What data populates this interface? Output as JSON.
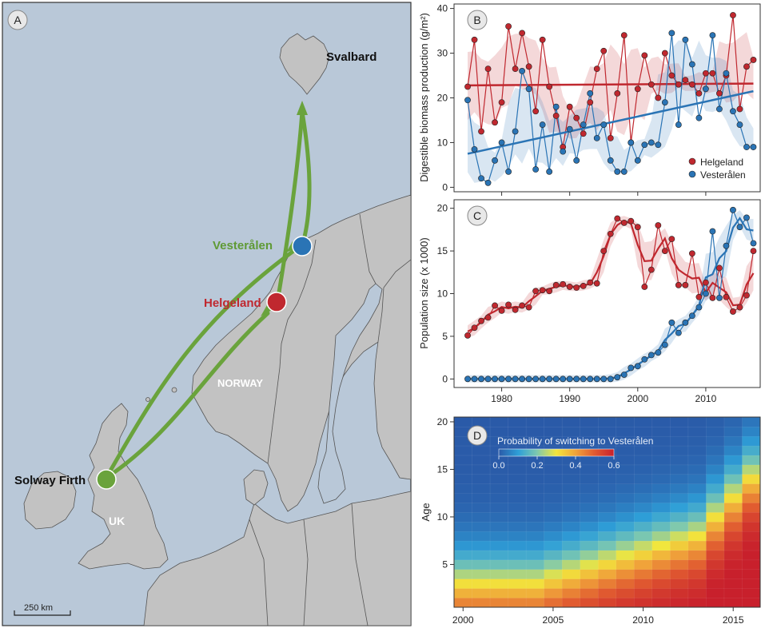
{
  "panels": {
    "a": {
      "letter": "A"
    },
    "b": {
      "letter": "B"
    },
    "c": {
      "letter": "C"
    },
    "d": {
      "letter": "D"
    }
  },
  "map": {
    "labels": {
      "svalbard": "Svalbard",
      "vesteralen": "Vesterålen",
      "helgeland": "Helgeland",
      "norway": "NORWAY",
      "solway": "Solway Firth",
      "uk": "UK"
    },
    "scale_label": "250 km",
    "colors": {
      "sea": "#b9c8d8",
      "land": "#c2c2c2",
      "border": "#555555",
      "route": "#6aa33c",
      "vesteralen": "#2a74b5",
      "helgeland": "#c0282f",
      "solway": "#6aa33c"
    }
  },
  "chart_data": [
    {
      "id": "B",
      "type": "line",
      "title": "",
      "ylabel": "Digestible biomass production (g/m²)",
      "xlabel": "",
      "xlim": [
        1973,
        2018
      ],
      "ylim": [
        -1,
        41
      ],
      "yticks": [
        0,
        10,
        20,
        30,
        40
      ],
      "xticks": [
        1980,
        1990,
        2000,
        2010
      ],
      "legend": {
        "position": "bottom-right"
      },
      "series": [
        {
          "name": "Helgeland",
          "color": "#c0282f",
          "x": [
            1975,
            1976,
            1977,
            1978,
            1979,
            1980,
            1981,
            1982,
            1983,
            1984,
            1985,
            1986,
            1987,
            1988,
            1989,
            1990,
            1991,
            1992,
            1993,
            1994,
            1995,
            1996,
            1997,
            1998,
            1999,
            2000,
            2001,
            2002,
            2003,
            2004,
            2005,
            2006,
            2007,
            2008,
            2009,
            2010,
            2011,
            2012,
            2013,
            2014,
            2015,
            2016,
            2017
          ],
          "y": [
            22.5,
            33,
            12.5,
            26.5,
            14.5,
            19,
            36,
            26.5,
            34.5,
            27,
            17,
            33,
            22.5,
            16,
            9,
            18,
            15.5,
            12,
            19,
            26.5,
            30.5,
            11,
            21,
            34,
            10,
            22,
            29.5,
            23,
            20,
            30,
            25,
            23,
            24,
            23,
            21,
            25.5,
            25.5,
            21,
            25,
            38.5,
            17.5,
            27,
            28.5
          ],
          "trend": [
            22.8,
            23.2
          ]
        },
        {
          "name": "Vesterålen",
          "color": "#2a74b5",
          "x": [
            1975,
            1976,
            1977,
            1978,
            1979,
            1980,
            1981,
            1982,
            1983,
            1984,
            1985,
            1986,
            1987,
            1988,
            1989,
            1990,
            1991,
            1992,
            1993,
            1994,
            1995,
            1996,
            1997,
            1998,
            1999,
            2000,
            2001,
            2002,
            2003,
            2004,
            2005,
            2006,
            2007,
            2008,
            2009,
            2010,
            2011,
            2012,
            2013,
            2014,
            2015,
            2016,
            2017
          ],
          "y": [
            19.5,
            8.5,
            2,
            1,
            6,
            10,
            3.5,
            12.5,
            26,
            22,
            4,
            14,
            3.5,
            18,
            8,
            13,
            6,
            14,
            21,
            11,
            14,
            6,
            3.5,
            3.5,
            10,
            6,
            9.5,
            10,
            9.5,
            19,
            34.5,
            14,
            33,
            27.5,
            15.5,
            22,
            34,
            17.5,
            25.5,
            17,
            14,
            9,
            9
          ],
          "trend": [
            7.5,
            21.5
          ]
        }
      ]
    },
    {
      "id": "C",
      "type": "line",
      "title": "",
      "ylabel": "Population size (x 1000)",
      "xlabel": "",
      "xlim": [
        1973,
        2018
      ],
      "ylim": [
        -1,
        21
      ],
      "yticks": [
        0,
        5,
        10,
        15,
        20
      ],
      "xticks": [
        1980,
        1990,
        2000,
        2010
      ],
      "series": [
        {
          "name": "Helgeland",
          "color": "#c0282f",
          "x": [
            1975,
            1976,
            1977,
            1978,
            1979,
            1980,
            1981,
            1982,
            1983,
            1984,
            1985,
            1986,
            1987,
            1988,
            1989,
            1990,
            1991,
            1992,
            1993,
            1994,
            1995,
            1996,
            1997,
            1998,
            1999,
            2000,
            2001,
            2002,
            2003,
            2004,
            2005,
            2006,
            2007,
            2008,
            2009,
            2010,
            2011,
            2012,
            2013,
            2014,
            2015,
            2016,
            2017
          ],
          "y": [
            5.1,
            6,
            6.8,
            7.2,
            8.6,
            8,
            8.7,
            8.1,
            8.6,
            8.4,
            10.3,
            10.4,
            10.3,
            11,
            11.1,
            10.8,
            10.7,
            10.9,
            11.3,
            11.2,
            15,
            17,
            18.8,
            18.3,
            18.5,
            17.8,
            10.8,
            12.8,
            18,
            15,
            16.4,
            11,
            11,
            14.7,
            9.6,
            11.3,
            9.5,
            13,
            9.6,
            7.9,
            8.4,
            9.8,
            15
          ]
        },
        {
          "name": "Vesterålen",
          "color": "#2a74b5",
          "x": [
            1975,
            1976,
            1977,
            1978,
            1979,
            1980,
            1981,
            1982,
            1983,
            1984,
            1985,
            1986,
            1987,
            1988,
            1989,
            1990,
            1991,
            1992,
            1993,
            1994,
            1995,
            1996,
            1997,
            1998,
            1999,
            2000,
            2001,
            2002,
            2003,
            2004,
            2005,
            2006,
            2007,
            2008,
            2009,
            2010,
            2011,
            2012,
            2013,
            2014,
            2015,
            2016,
            2017
          ],
          "y": [
            0,
            0,
            0,
            0,
            0,
            0,
            0,
            0,
            0,
            0,
            0,
            0,
            0,
            0,
            0,
            0,
            0,
            0,
            0,
            0,
            0,
            0,
            0.2,
            0.5,
            1.3,
            1.5,
            2.3,
            2.8,
            3.1,
            4,
            6.6,
            5.4,
            6.6,
            7.4,
            8.4,
            10,
            17.3,
            9.5,
            15.6,
            19.8,
            17.8,
            18.9,
            15.9
          ]
        }
      ],
      "xtick_labels": [
        "1980",
        "1990",
        "2000",
        "2010"
      ]
    },
    {
      "id": "D",
      "type": "heatmap",
      "title": "Probability of switching to Vesterålen",
      "ylabel": "Age",
      "xlabel": "",
      "xlim": [
        1999.5,
        2016.5
      ],
      "ylim": [
        0.5,
        20.5
      ],
      "xticks": [
        2000,
        2005,
        2010,
        2015
      ],
      "yticks": [
        5,
        10,
        15,
        20
      ],
      "x_range": [
        2000,
        2016
      ],
      "age_range": [
        1,
        20
      ],
      "colorbar": {
        "min": 0,
        "max": 0.6,
        "ticks": [
          "0.0",
          "0.2",
          "0.4",
          "0.6"
        ]
      },
      "value_rule": "p = 0.62 / (1 + exp(0.45*(age - 3 - max(0, year - 2004)*0.55 - (year>=2014 ? (year-2013)*1.5 : 0))))"
    }
  ]
}
